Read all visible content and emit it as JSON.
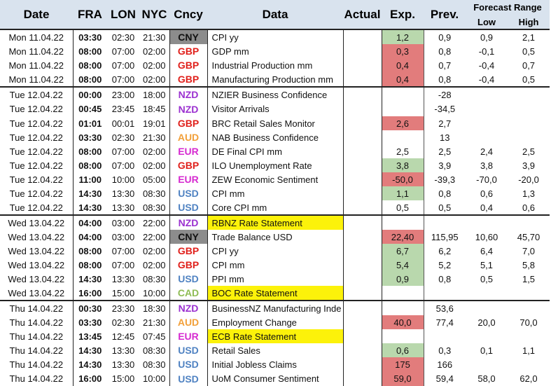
{
  "colors": {
    "CNY": "#111111",
    "GBP": "#e0201b",
    "NZD": "#9b30d0",
    "AUD": "#f2a03a",
    "EUR": "#d62ad0",
    "USD": "#4f82c2",
    "CAD": "#8fbc55",
    "green": "#b9d8ad",
    "red": "#e27c7c",
    "yellow": "#fcf20a",
    "grey": "#8c8c8c",
    "header": "#d9e3ee"
  },
  "header": {
    "date": "Date",
    "fra": "FRA",
    "lon": "LON",
    "nyc": "NYC",
    "cncy": "Cncy",
    "data": "Data",
    "actual": "Actual",
    "exp": "Exp.",
    "prev": "Prev.",
    "forecast_range": "Forecast Range",
    "low": "Low",
    "high": "High"
  },
  "rows": [
    {
      "date": "Mon 11.04.22",
      "fra": "03:30",
      "lon": "02:30",
      "nyc": "21:30",
      "cncy": "CNY",
      "cbg": "grey",
      "data": "CPI yy",
      "actual": "",
      "exp": "1,2",
      "eb": "green",
      "prev": "0,9",
      "low": "0,9",
      "high": "2,1",
      "group": true
    },
    {
      "date": "Mon 11.04.22",
      "fra": "08:00",
      "lon": "07:00",
      "nyc": "02:00",
      "cncy": "GBP",
      "cbg": "",
      "data": "GDP mm",
      "actual": "",
      "exp": "0,3",
      "eb": "red",
      "prev": "0,8",
      "low": "-0,1",
      "high": "0,5"
    },
    {
      "date": "Mon 11.04.22",
      "fra": "08:00",
      "lon": "07:00",
      "nyc": "02:00",
      "cncy": "GBP",
      "cbg": "",
      "data": "Industrial Production mm",
      "actual": "",
      "exp": "0,4",
      "eb": "red",
      "prev": "0,7",
      "low": "-0,4",
      "high": "0,7"
    },
    {
      "date": "Mon 11.04.22",
      "fra": "08:00",
      "lon": "07:00",
      "nyc": "02:00",
      "cncy": "GBP",
      "cbg": "",
      "data": "Manufacturing Production mm",
      "actual": "",
      "exp": "0,4",
      "eb": "red",
      "prev": "0,8",
      "low": "-0,4",
      "high": "0,5"
    },
    {
      "date": "Tue 12.04.22",
      "fra": "00:00",
      "lon": "23:00",
      "nyc": "18:00",
      "cncy": "NZD",
      "cbg": "",
      "data": "NZIER Business Confidence",
      "actual": "",
      "exp": "",
      "eb": "",
      "prev": "-28",
      "low": "",
      "high": "",
      "group": true
    },
    {
      "date": "Tue 12.04.22",
      "fra": "00:45",
      "lon": "23:45",
      "nyc": "18:45",
      "cncy": "NZD",
      "cbg": "",
      "data": "Visitor Arrivals",
      "actual": "",
      "exp": "",
      "eb": "",
      "prev": "-34,5",
      "low": "",
      "high": ""
    },
    {
      "date": "Tue 12.04.22",
      "fra": "01:01",
      "lon": "00:01",
      "nyc": "19:01",
      "cncy": "GBP",
      "cbg": "",
      "data": "BRC Retail Sales Monitor",
      "actual": "",
      "exp": "2,6",
      "eb": "red",
      "prev": "2,7",
      "low": "",
      "high": ""
    },
    {
      "date": "Tue 12.04.22",
      "fra": "03:30",
      "lon": "02:30",
      "nyc": "21:30",
      "cncy": "AUD",
      "cbg": "",
      "data": "NAB Business Confidence",
      "actual": "",
      "exp": "",
      "eb": "",
      "prev": "13",
      "low": "",
      "high": ""
    },
    {
      "date": "Tue 12.04.22",
      "fra": "08:00",
      "lon": "07:00",
      "nyc": "02:00",
      "cncy": "EUR",
      "cbg": "",
      "data": "DE Final CPI mm",
      "actual": "",
      "exp": "2,5",
      "eb": "",
      "prev": "2,5",
      "low": "2,4",
      "high": "2,5"
    },
    {
      "date": "Tue 12.04.22",
      "fra": "08:00",
      "lon": "07:00",
      "nyc": "02:00",
      "cncy": "GBP",
      "cbg": "",
      "data": "ILO Unemployment Rate",
      "actual": "",
      "exp": "3,8",
      "eb": "green",
      "prev": "3,9",
      "low": "3,8",
      "high": "3,9"
    },
    {
      "date": "Tue 12.04.22",
      "fra": "11:00",
      "lon": "10:00",
      "nyc": "05:00",
      "cncy": "EUR",
      "cbg": "",
      "data": "ZEW Economic Sentiment",
      "actual": "",
      "exp": "-50,0",
      "eb": "red",
      "prev": "-39,3",
      "low": "-70,0",
      "high": "-20,0"
    },
    {
      "date": "Tue 12.04.22",
      "fra": "14:30",
      "lon": "13:30",
      "nyc": "08:30",
      "cncy": "USD",
      "cbg": "",
      "data": "CPI mm",
      "actual": "",
      "exp": "1,1",
      "eb": "green",
      "prev": "0,8",
      "low": "0,6",
      "high": "1,3"
    },
    {
      "date": "Tue 12.04.22",
      "fra": "14:30",
      "lon": "13:30",
      "nyc": "08:30",
      "cncy": "USD",
      "cbg": "",
      "data": "Core CPI mm",
      "actual": "",
      "exp": "0,5",
      "eb": "",
      "prev": "0,5",
      "low": "0,4",
      "high": "0,6"
    },
    {
      "date": "Wed 13.04.22",
      "fra": "04:00",
      "lon": "03:00",
      "nyc": "22:00",
      "cncy": "NZD",
      "cbg": "",
      "data": "RBNZ Rate Statement",
      "db": "yellow",
      "actual": "",
      "exp": "",
      "eb": "",
      "prev": "",
      "low": "",
      "high": "",
      "group": true
    },
    {
      "date": "Wed 13.04.22",
      "fra": "04:00",
      "lon": "03:00",
      "nyc": "22:00",
      "cncy": "CNY",
      "cbg": "grey",
      "data": "Trade Balance USD",
      "actual": "",
      "exp": "22,40",
      "eb": "red",
      "prev": "115,95",
      "low": "10,60",
      "high": "45,70"
    },
    {
      "date": "Wed 13.04.22",
      "fra": "08:00",
      "lon": "07:00",
      "nyc": "02:00",
      "cncy": "GBP",
      "cbg": "",
      "data": "CPI yy",
      "actual": "",
      "exp": "6,7",
      "eb": "green",
      "prev": "6,2",
      "low": "6,4",
      "high": "7,0"
    },
    {
      "date": "Wed 13.04.22",
      "fra": "08:00",
      "lon": "07:00",
      "nyc": "02:00",
      "cncy": "GBP",
      "cbg": "",
      "data": "CPI mm",
      "actual": "",
      "exp": "5,4",
      "eb": "green",
      "prev": "5,2",
      "low": "5,1",
      "high": "5,8"
    },
    {
      "date": "Wed 13.04.22",
      "fra": "14:30",
      "lon": "13:30",
      "nyc": "08:30",
      "cncy": "USD",
      "cbg": "",
      "data": "PPI mm",
      "actual": "",
      "exp": "0,9",
      "eb": "green",
      "prev": "0,8",
      "low": "0,5",
      "high": "1,5"
    },
    {
      "date": "Wed 13.04.22",
      "fra": "16:00",
      "lon": "15:00",
      "nyc": "10:00",
      "cncy": "CAD",
      "cbg": "",
      "data": "BOC Rate Statement",
      "db": "yellow",
      "actual": "",
      "exp": "",
      "eb": "",
      "prev": "",
      "low": "",
      "high": ""
    },
    {
      "date": "Thu 14.04.22",
      "fra": "00:30",
      "lon": "23:30",
      "nyc": "18:30",
      "cncy": "NZD",
      "cbg": "",
      "data": "BusinessNZ Manufacturing Inde",
      "actual": "",
      "exp": "",
      "eb": "",
      "prev": "53,6",
      "low": "",
      "high": "",
      "group": true
    },
    {
      "date": "Thu 14.04.22",
      "fra": "03:30",
      "lon": "02:30",
      "nyc": "21:30",
      "cncy": "AUD",
      "cbg": "",
      "data": "Employment Change",
      "actual": "",
      "exp": "40,0",
      "eb": "red",
      "prev": "77,4",
      "low": "20,0",
      "high": "70,0"
    },
    {
      "date": "Thu 14.04.22",
      "fra": "13:45",
      "lon": "12:45",
      "nyc": "07:45",
      "cncy": "EUR",
      "cbg": "",
      "data": "ECB Rate Statement",
      "db": "yellow",
      "actual": "",
      "exp": "",
      "eb": "",
      "prev": "",
      "low": "",
      "high": ""
    },
    {
      "date": "Thu 14.04.22",
      "fra": "14:30",
      "lon": "13:30",
      "nyc": "08:30",
      "cncy": "USD",
      "cbg": "",
      "data": "Retail Sales",
      "actual": "",
      "exp": "0,6",
      "eb": "green",
      "prev": "0,3",
      "low": "0,1",
      "high": "1,1"
    },
    {
      "date": "Thu 14.04.22",
      "fra": "14:30",
      "lon": "13:30",
      "nyc": "08:30",
      "cncy": "USD",
      "cbg": "",
      "data": "Initial Jobless Claims",
      "actual": "",
      "exp": "175",
      "eb": "red",
      "prev": "166",
      "low": "",
      "high": ""
    },
    {
      "date": "Thu 14.04.22",
      "fra": "16:00",
      "lon": "15:00",
      "nyc": "10:00",
      "cncy": "USD",
      "cbg": "",
      "data": "UoM Consumer Sentiment",
      "actual": "",
      "exp": "59,0",
      "eb": "red",
      "prev": "59,4",
      "low": "58,0",
      "high": "62,0"
    }
  ]
}
